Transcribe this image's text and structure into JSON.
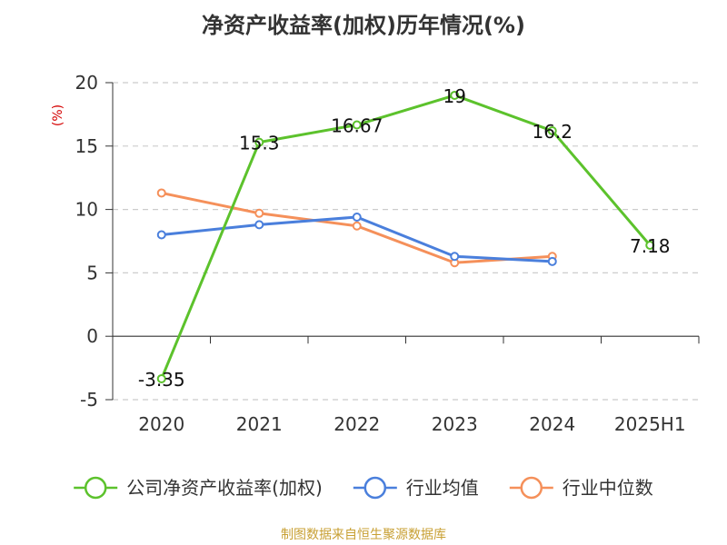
{
  "chart_data": {
    "type": "line",
    "title": "净资产收益率(加权)历年情况(%)",
    "ylabel": "(%)",
    "xlabel": "",
    "categories": [
      "2020",
      "2021",
      "2022",
      "2023",
      "2024",
      "2025H1"
    ],
    "ylim": [
      -5,
      20
    ],
    "yticks": [
      -5,
      0,
      5,
      10,
      15,
      20
    ],
    "grid": true,
    "legend_position": "bottom",
    "series": [
      {
        "name": "公司净资产收益率(加权)",
        "color": "#5cc22c",
        "show_labels": true,
        "values": [
          -3.35,
          15.3,
          16.67,
          19,
          16.2,
          7.18
        ]
      },
      {
        "name": "行业均值",
        "color": "#4a7fdc",
        "show_labels": false,
        "values": [
          8.0,
          8.8,
          9.4,
          6.3,
          5.9,
          null
        ]
      },
      {
        "name": "行业中位数",
        "color": "#f5905a",
        "show_labels": false,
        "values": [
          11.3,
          9.7,
          8.7,
          5.8,
          6.3,
          null
        ]
      }
    ]
  },
  "footer": {
    "source": "制图数据来自恒生聚源数据库"
  }
}
